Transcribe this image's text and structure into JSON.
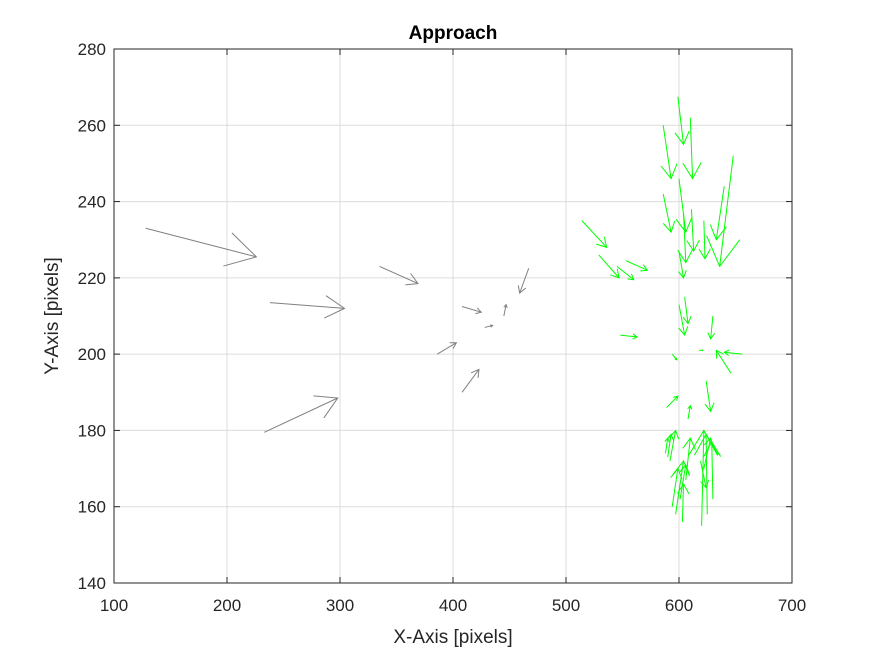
{
  "chart_data": {
    "type": "quiver",
    "title": "Approach",
    "xlabel": "X-Axis [pixels]",
    "ylabel": "Y-Axis [pixels]",
    "xlim": [
      100,
      700
    ],
    "ylim": [
      140,
      280
    ],
    "xticks": [
      100,
      200,
      300,
      400,
      500,
      600,
      700
    ],
    "yticks": [
      140,
      160,
      180,
      200,
      220,
      240,
      260,
      280
    ],
    "grid": true,
    "colors": {
      "gray_series": "#808080",
      "green_series": "#00ff00",
      "grid": "#dcdcdc",
      "axis": "#262626"
    },
    "series": [
      {
        "color": "#808080",
        "arrows": [
          [
            128,
            233,
            226,
            225.5
          ],
          [
            238,
            213.5,
            304,
            212
          ],
          [
            233,
            179.5,
            298,
            188.5
          ],
          [
            335,
            223,
            369,
            218.5
          ],
          [
            386,
            200,
            403,
            203
          ],
          [
            408,
            212.5,
            425,
            211
          ],
          [
            408,
            190,
            423,
            196
          ],
          [
            428,
            207,
            435,
            207.5
          ],
          [
            445,
            210,
            447,
            213
          ],
          [
            467,
            222.5,
            459,
            216
          ]
        ]
      },
      {
        "color": "#00ff00",
        "arrows": [
          [
            514,
            235,
            536,
            228
          ],
          [
            529,
            226,
            547,
            220
          ],
          [
            545,
            223,
            560,
            219.5
          ],
          [
            553,
            224.5,
            572,
            222
          ],
          [
            548,
            205,
            563,
            204.5
          ],
          [
            586,
            260,
            593,
            246
          ],
          [
            599,
            267.5,
            604,
            255
          ],
          [
            610,
            262,
            612,
            246
          ],
          [
            586,
            242,
            593,
            232
          ],
          [
            600,
            246,
            606,
            232
          ],
          [
            611,
            238,
            613,
            227
          ],
          [
            604,
            237,
            606,
            224
          ],
          [
            622,
            235,
            623,
            225
          ],
          [
            648,
            252,
            636,
            223
          ],
          [
            640,
            244,
            633,
            230
          ],
          [
            600,
            227,
            604,
            220
          ],
          [
            605,
            215,
            608,
            208
          ],
          [
            600,
            213,
            605,
            205
          ],
          [
            630,
            210,
            628,
            204
          ],
          [
            656,
            200,
            640,
            200.5
          ],
          [
            646,
            195,
            633,
            201
          ],
          [
            594,
            200,
            598,
            198.5
          ],
          [
            618,
            201,
            621,
            201
          ],
          [
            624,
            193,
            628,
            185
          ],
          [
            589,
            186,
            599,
            189
          ],
          [
            608,
            183,
            610,
            186.5
          ],
          [
            590,
            173,
            593,
            179
          ],
          [
            592,
            172,
            597,
            180
          ],
          [
            588,
            174,
            590,
            178
          ],
          [
            597,
            158,
            604,
            172
          ],
          [
            594,
            160,
            599,
            170
          ],
          [
            601,
            162,
            606,
            171
          ],
          [
            606,
            167,
            610,
            178
          ],
          [
            603,
            156,
            604,
            166
          ],
          [
            620,
            155,
            622,
            180
          ],
          [
            625,
            158,
            624,
            179
          ],
          [
            630,
            162,
            629,
            177
          ],
          [
            622,
            170,
            628,
            178
          ],
          [
            619,
            172,
            624,
            165
          ]
        ]
      }
    ]
  }
}
